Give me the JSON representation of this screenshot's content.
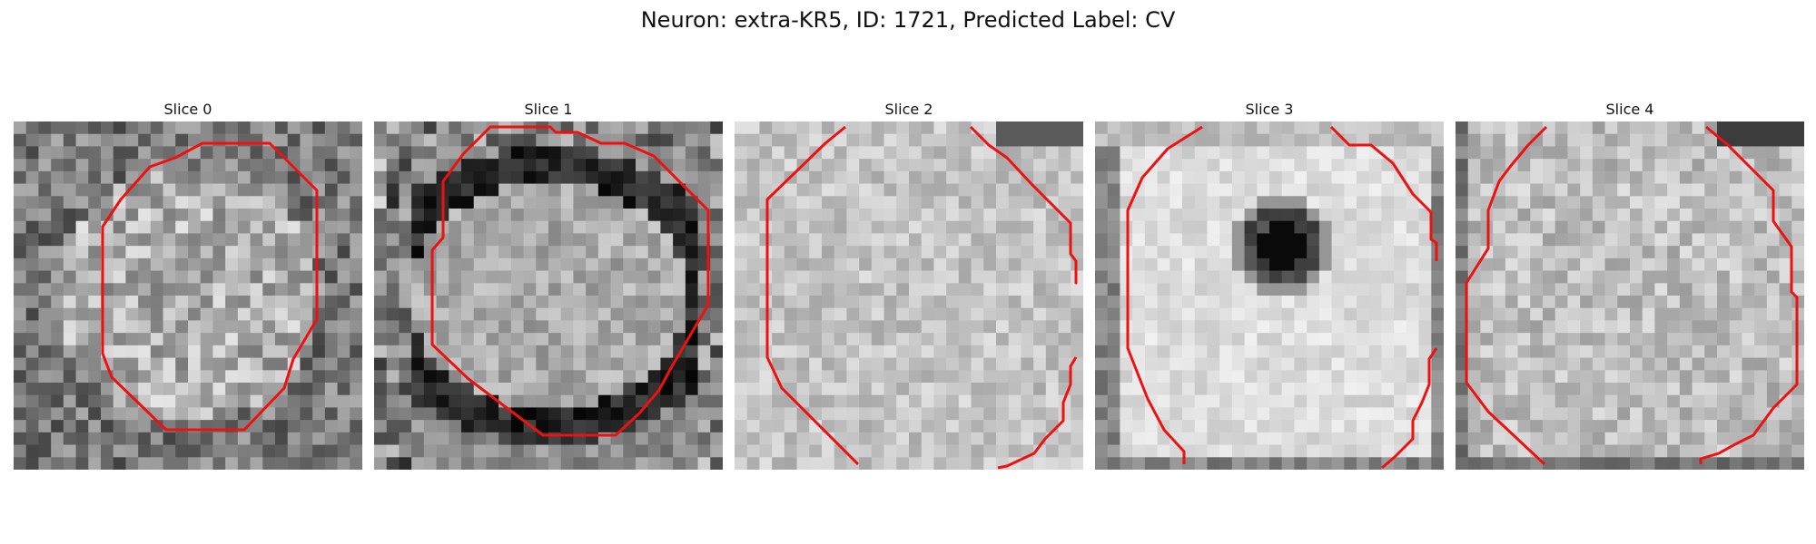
{
  "figure": {
    "title": "Neuron: extra-KR5, ID: 1721, Predicted Label: CV"
  },
  "panels": [
    {
      "title": "Slice 0",
      "contour_color": "#ee1111",
      "grid_size": 28,
      "tone": "mid",
      "blob": "none"
    },
    {
      "title": "Slice 1",
      "contour_color": "#ee1111",
      "grid_size": 28,
      "tone": "high-contrast",
      "blob": "dark-ring"
    },
    {
      "title": "Slice 2",
      "contour_color": "#ee1111",
      "grid_size": 28,
      "tone": "light",
      "blob": "none"
    },
    {
      "title": "Slice 3",
      "contour_color": "#ee1111",
      "grid_size": 28,
      "tone": "very-light",
      "blob": "dark-spot"
    },
    {
      "title": "Slice 4",
      "contour_color": "#ee1111",
      "grid_size": 28,
      "tone": "light",
      "blob": "none"
    }
  ]
}
